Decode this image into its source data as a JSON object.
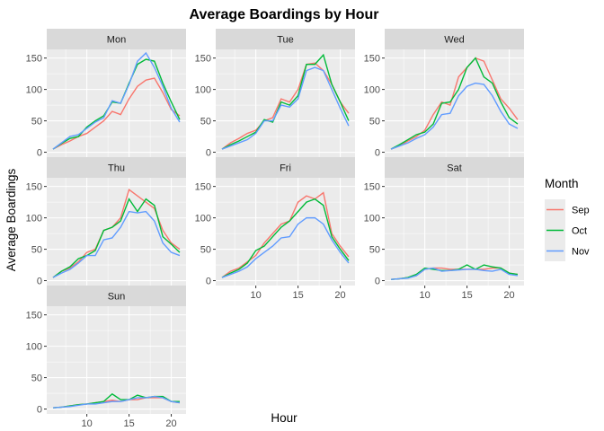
{
  "chart_data": {
    "type": "line",
    "title": "Average Boardings by Hour",
    "xlabel": "Hour",
    "ylabel": "Average Boardings",
    "x": [
      6,
      7,
      8,
      9,
      10,
      11,
      12,
      13,
      14,
      15,
      16,
      17,
      18,
      19,
      20,
      21
    ],
    "xticks": [
      10,
      15,
      20
    ],
    "yticks": [
      0,
      50,
      100,
      150
    ],
    "xlim": [
      5.25,
      21.75
    ],
    "ylim": [
      -7.8,
      163.8
    ],
    "grid": true,
    "facet_by": "Day",
    "legend": {
      "title": "Month",
      "position": "right"
    },
    "series_colors": {
      "Sep": "#F8766D",
      "Oct": "#00BA38",
      "Nov": "#619CFF"
    },
    "panels": [
      {
        "label": "Mon",
        "series": [
          {
            "name": "Sep",
            "values": [
              5,
              12,
              18,
              25,
              30,
              40,
              50,
              65,
              60,
              85,
              105,
              115,
              118,
              95,
              68,
              58
            ]
          },
          {
            "name": "Oct",
            "values": [
              5,
              14,
              22,
              25,
              40,
              50,
              58,
              80,
              78,
              110,
              140,
              148,
              145,
              110,
              80,
              52
            ]
          },
          {
            "name": "Nov",
            "values": [
              5,
              15,
              25,
              28,
              38,
              48,
              55,
              82,
              78,
              108,
              145,
              158,
              135,
              105,
              70,
              48
            ]
          }
        ]
      },
      {
        "label": "Tue",
        "series": [
          {
            "name": "Sep",
            "values": [
              5,
              15,
              22,
              30,
              35,
              50,
              55,
              85,
              80,
              100,
              140,
              142,
              130,
              108,
              80,
              62
            ]
          },
          {
            "name": "Oct",
            "values": [
              5,
              12,
              18,
              25,
              32,
              52,
              48,
              80,
              75,
              90,
              140,
              140,
              155,
              108,
              80,
              50
            ]
          },
          {
            "name": "Nov",
            "values": [
              5,
              10,
              15,
              20,
              30,
              50,
              50,
              75,
              72,
              85,
              130,
              135,
              130,
              100,
              70,
              42
            ]
          }
        ]
      },
      {
        "label": "Wed",
        "series": [
          {
            "name": "Sep",
            "values": [
              5,
              10,
              18,
              25,
              35,
              60,
              80,
              75,
              120,
              135,
              150,
              145,
              115,
              85,
              70,
              52
            ]
          },
          {
            "name": "Oct",
            "values": [
              5,
              12,
              20,
              28,
              32,
              45,
              78,
              80,
              100,
              135,
              150,
              120,
              110,
              80,
              55,
              45
            ]
          },
          {
            "name": "Nov",
            "values": [
              5,
              10,
              15,
              22,
              28,
              40,
              60,
              62,
              90,
              105,
              110,
              108,
              90,
              65,
              45,
              38
            ]
          }
        ]
      },
      {
        "label": "Thu",
        "series": [
          {
            "name": "Sep",
            "values": [
              5,
              15,
              20,
              30,
              45,
              50,
              80,
              85,
              100,
              145,
              135,
              125,
              115,
              80,
              60,
              50
            ]
          },
          {
            "name": "Oct",
            "values": [
              5,
              15,
              22,
              35,
              40,
              48,
              80,
              85,
              95,
              130,
              110,
              130,
              120,
              70,
              58,
              45
            ]
          },
          {
            "name": "Nov",
            "values": [
              5,
              12,
              18,
              28,
              40,
              40,
              65,
              68,
              85,
              110,
              108,
              110,
              95,
              60,
              45,
              40
            ]
          }
        ]
      },
      {
        "label": "Fri",
        "series": [
          {
            "name": "Sep",
            "values": [
              5,
              15,
              20,
              30,
              40,
              60,
              75,
              90,
              95,
              125,
              135,
              130,
              140,
              75,
              55,
              38
            ]
          },
          {
            "name": "Oct",
            "values": [
              5,
              12,
              18,
              28,
              48,
              55,
              70,
              85,
              95,
              110,
              125,
              130,
              120,
              70,
              50,
              32
            ]
          },
          {
            "name": "Nov",
            "values": [
              5,
              10,
              15,
              22,
              35,
              45,
              55,
              68,
              70,
              90,
              100,
              100,
              90,
              65,
              45,
              28
            ]
          }
        ]
      },
      {
        "label": "Sat",
        "series": [
          {
            "name": "Sep",
            "values": [
              2,
              3,
              5,
              8,
              18,
              20,
              20,
              18,
              18,
              18,
              18,
              18,
              20,
              20,
              12,
              10
            ]
          },
          {
            "name": "Oct",
            "values": [
              2,
              3,
              5,
              10,
              20,
              18,
              16,
              16,
              18,
              25,
              18,
              25,
              22,
              20,
              12,
              10
            ]
          },
          {
            "name": "Nov",
            "values": [
              2,
              3,
              4,
              8,
              18,
              20,
              15,
              16,
              17,
              18,
              18,
              16,
              15,
              18,
              10,
              8
            ]
          }
        ]
      },
      {
        "label": "Sun",
        "series": [
          {
            "name": "Sep",
            "values": [
              2,
              3,
              5,
              7,
              8,
              10,
              12,
              14,
              12,
              15,
              15,
              18,
              18,
              18,
              12,
              10
            ]
          },
          {
            "name": "Oct",
            "values": [
              2,
              3,
              5,
              7,
              8,
              10,
              12,
              24,
              15,
              15,
              22,
              18,
              20,
              20,
              12,
              12
            ]
          },
          {
            "name": "Nov",
            "values": [
              2,
              3,
              4,
              6,
              8,
              8,
              10,
              12,
              12,
              15,
              18,
              18,
              20,
              18,
              12,
              10
            ]
          }
        ]
      }
    ]
  }
}
